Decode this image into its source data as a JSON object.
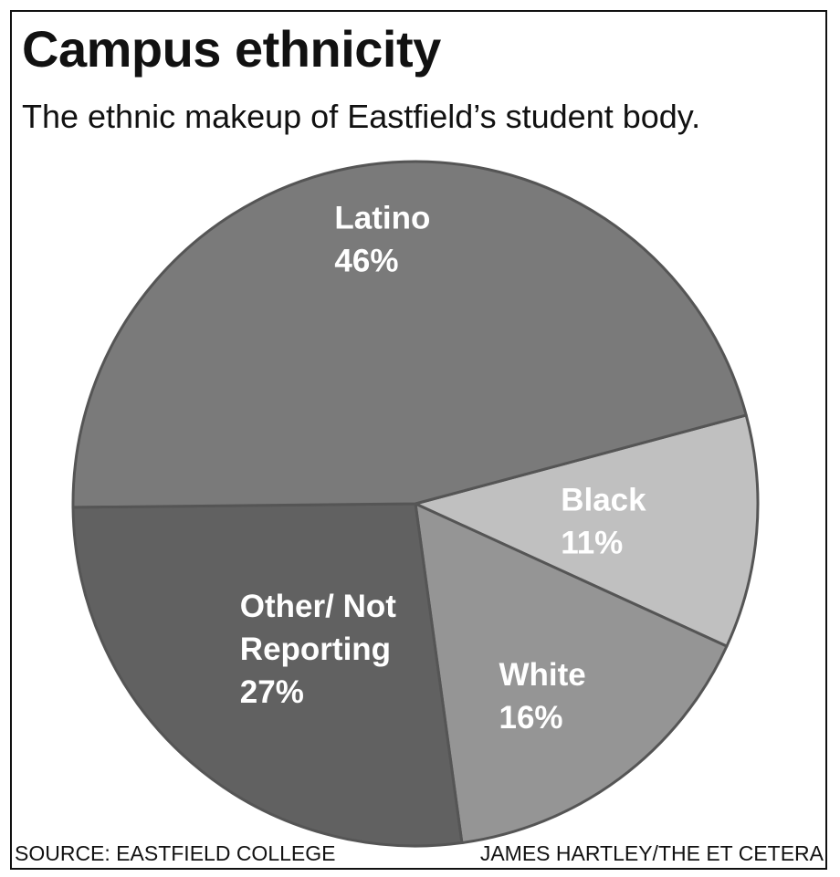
{
  "title": "Campus ethnicity",
  "subtitle": "The ethnic makeup of Eastfield’s student body.",
  "source": "SOURCE: EASTFIELD COLLEGE",
  "credit": "JAMES HARTLEY/THE ET CETERA",
  "chart_data": {
    "type": "pie",
    "title": "Campus ethnicity",
    "subtitle": "The ethnic makeup of Eastfield’s student body.",
    "slices": [
      {
        "label_lines": [
          "Black",
          "11%"
        ],
        "value": 11,
        "color": "#c0c0c0"
      },
      {
        "label_lines": [
          "White",
          "16%"
        ],
        "value": 16,
        "color": "#959595"
      },
      {
        "label_lines": [
          "Other/ Not",
          "Reporting",
          "27%"
        ],
        "value": 27,
        "color": "#616161"
      },
      {
        "label_lines": [
          "Latino",
          "46%"
        ],
        "value": 46,
        "color": "#7a7a7a"
      }
    ],
    "edge_color": "#555555"
  }
}
